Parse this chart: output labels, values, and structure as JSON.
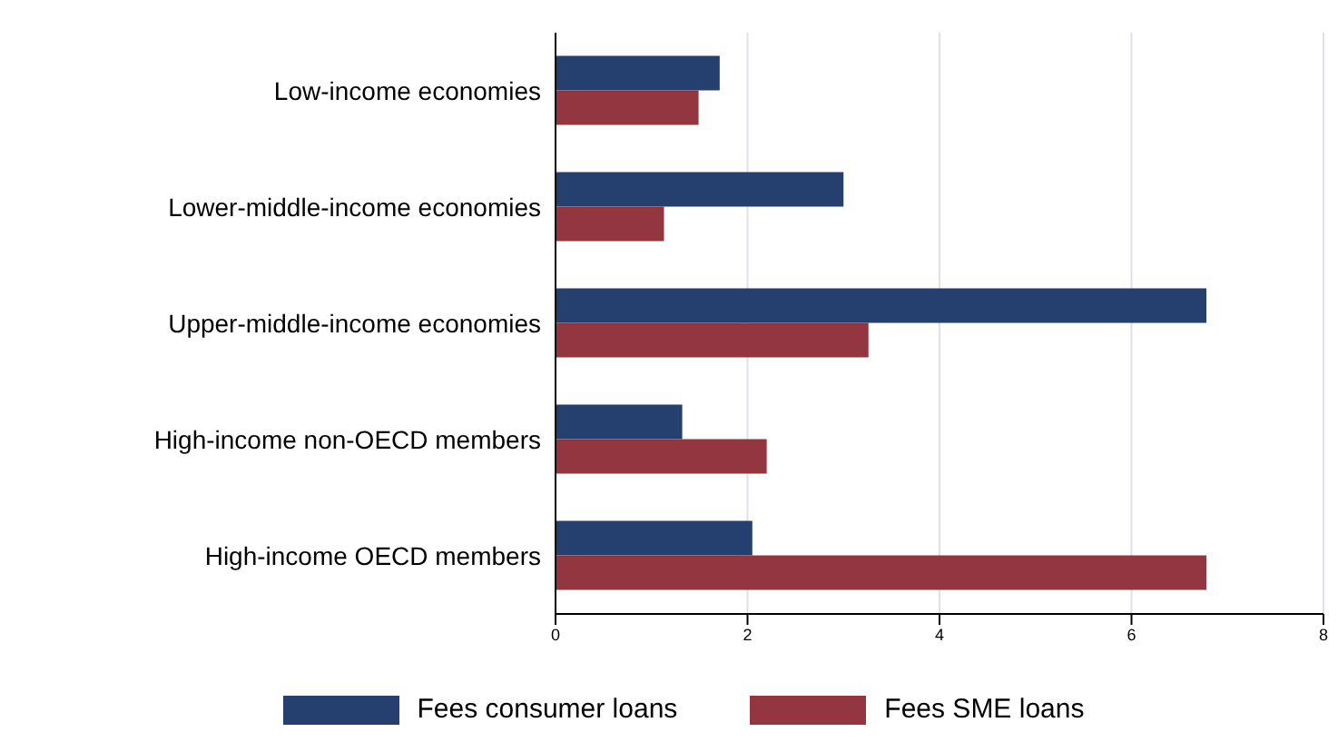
{
  "chart_data": {
    "type": "bar",
    "orientation": "horizontal",
    "categories": [
      "Low-income economies",
      "Lower-middle-income economies",
      "Upper-middle-income economies",
      "High-income  non-OECD members",
      "High-income OECD members"
    ],
    "series": [
      {
        "name": "Fees consumer loans",
        "color": "#253f6e",
        "values": [
          1.71,
          3.0,
          6.78,
          1.32,
          2.05
        ]
      },
      {
        "name": "Fees SME loans",
        "color": "#933640",
        "values": [
          1.49,
          1.13,
          3.26,
          2.2,
          6.78
        ]
      }
    ],
    "xlim": [
      0,
      8
    ],
    "xticks": [
      0,
      2,
      4,
      6,
      8
    ],
    "grid": "x",
    "legend": "bottom"
  }
}
